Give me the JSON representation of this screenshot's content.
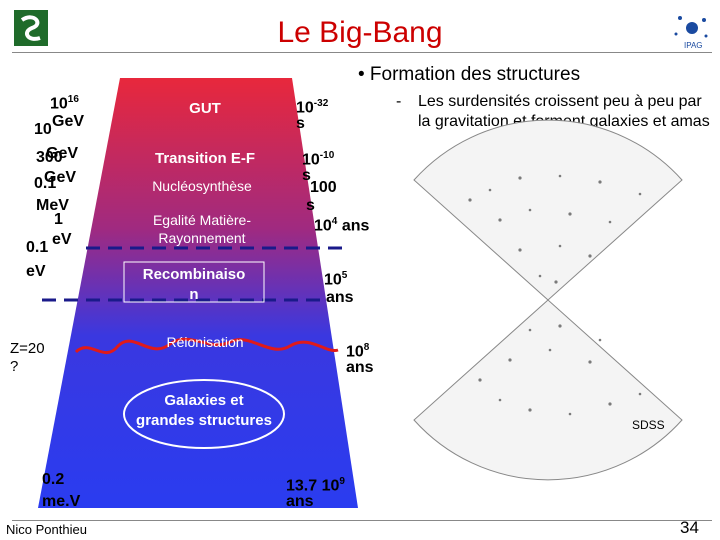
{
  "header": {
    "title": "Le Big-Bang"
  },
  "bullets": {
    "main": "• Formation des structures",
    "sub_dash": "-",
    "sub_text": "Les surdensités croissent peu à peu par la gravitation et forment galaxies et amas"
  },
  "energies": {
    "e1": "10",
    "e1_sup": "16",
    "e1_unit": "GeV",
    "e2": "10",
    "e2_unit": "GeV",
    "e3": "300",
    "e3_unit": "GeV",
    "e4": "0.1",
    "e4_unit": "MeV",
    "e5": "1",
    "e5_unit": "eV",
    "e6": "0.1",
    "e6_unit": "eV",
    "z": "Z=20",
    "z_q": "?",
    "e7": "0.2",
    "e7_unit": "me.V"
  },
  "times": {
    "t1": "10",
    "t1_sup": "-32",
    "t1_unit": "s",
    "t2": "10",
    "t2_sup": "-10",
    "t2_unit": "s",
    "t3": "100",
    "t3_unit": "s",
    "t4": "10",
    "t4_sup": "4",
    "t4_unit": "ans",
    "t5": "10",
    "t5_sup": "5",
    "t5_unit": "ans",
    "t6": "10",
    "t6_sup": "8",
    "t6_unit": "ans",
    "t7": "13.7 10",
    "t7_sup": "9",
    "t7_unit": "ans"
  },
  "stages": {
    "gut": "GUT",
    "transition": "Transition E-F",
    "nucleo": "Nucléosynthèse",
    "egalite_1": "Egalité Matière-",
    "egalite_2": "Rayonnement",
    "recomb_1": "Recombinaiso",
    "recomb_2": "n",
    "reion": "Réionisation",
    "galaxies_1": "Galaxies et",
    "galaxies_2": "grandes structures"
  },
  "survey_label": "SDSS",
  "footer": {
    "author": "Nico Ponthieu",
    "page": "34"
  },
  "colors": {
    "title": "#cc0000",
    "funnel_top": "#e8283c",
    "funnel_bottom": "#2a3cf0",
    "dashed": "#1a1a8a",
    "wavy": "#e01a1a"
  }
}
